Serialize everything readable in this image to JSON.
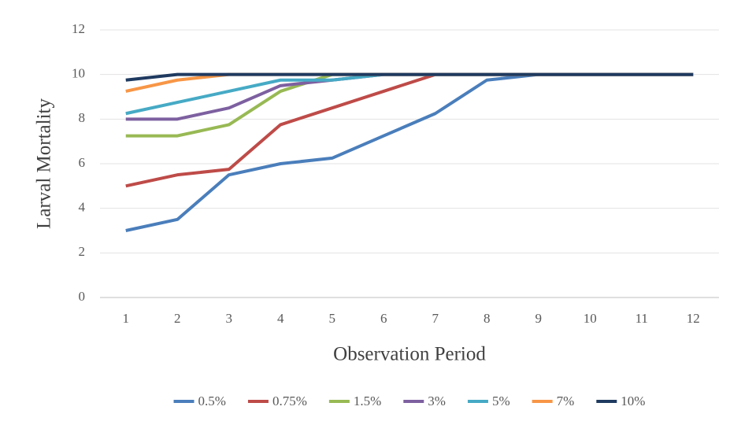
{
  "chart_data": {
    "type": "line",
    "x_label": "Observation Period",
    "y_label": "Larval Mortality",
    "categories": [
      "1",
      "2",
      "3",
      "4",
      "5",
      "6",
      "7",
      "8",
      "9",
      "10",
      "11",
      "12"
    ],
    "series": [
      {
        "name": "0.5%",
        "color": "#4a7ebb",
        "values": [
          3,
          3.5,
          5.5,
          6,
          6.25,
          7.25,
          8.25,
          9.75,
          10,
          10,
          10,
          10
        ]
      },
      {
        "name": "0.75%",
        "color": "#be4b48",
        "values": [
          5,
          5.5,
          5.75,
          7.75,
          8.5,
          9.25,
          10,
          10,
          10,
          10,
          10,
          10
        ]
      },
      {
        "name": "1.5%",
        "color": "#98b954",
        "values": [
          7.25,
          7.25,
          7.75,
          9.25,
          10,
          10,
          10,
          10,
          10,
          10,
          10,
          10
        ]
      },
      {
        "name": "3%",
        "color": "#7d60a0",
        "values": [
          8,
          8,
          8.5,
          9.5,
          9.75,
          10,
          10,
          10,
          10,
          10,
          10,
          10
        ]
      },
      {
        "name": "5%",
        "color": "#46aac5",
        "values": [
          8.25,
          8.75,
          9.25,
          9.75,
          9.75,
          10,
          10,
          10,
          10,
          10,
          10,
          10
        ]
      },
      {
        "name": "7%",
        "color": "#f79646",
        "values": [
          9.25,
          9.75,
          10,
          10,
          10,
          10,
          10,
          10,
          10,
          10,
          10,
          10
        ]
      },
      {
        "name": "10%",
        "color": "#1f3a60",
        "values": [
          9.75,
          10,
          10,
          10,
          10,
          10,
          10,
          10,
          10,
          10,
          10,
          10
        ]
      }
    ],
    "ylim": [
      0,
      12
    ],
    "yticks": [
      0,
      2,
      4,
      6,
      8,
      10,
      12
    ],
    "grid": true,
    "legend": "bottom"
  }
}
